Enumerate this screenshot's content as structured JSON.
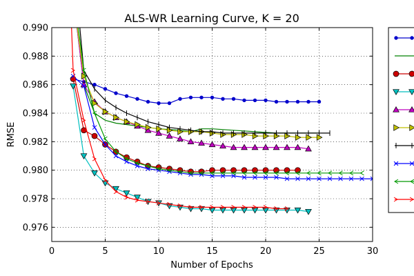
{
  "chart_data": {
    "type": "line",
    "title": "ALS-WR Learning Curve,  K = 20",
    "xlabel": "Number of Epochs",
    "ylabel": "RMSE",
    "xlim": [
      0,
      30
    ],
    "ylim": [
      0.975,
      0.99
    ],
    "xticks": [
      0,
      5,
      10,
      15,
      20,
      25,
      30
    ],
    "yticks": [
      0.976,
      0.978,
      0.98,
      0.982,
      0.984,
      0.986,
      0.988,
      0.99
    ],
    "xtick_labels": [
      "0",
      "5",
      "10",
      "15",
      "20",
      "25",
      "30"
    ],
    "ytick_labels": [
      "0.976",
      "0.978",
      "0.980",
      "0.982",
      "0.984",
      "0.986",
      "0.988",
      "0.990"
    ],
    "grid": true,
    "legend_position": "right, outside plot",
    "series": [
      {
        "color": "#0000cc",
        "marker": "dot",
        "style": "connected-markers",
        "points": [
          [
            2,
            0.9864
          ],
          [
            3,
            0.9862
          ],
          [
            4,
            0.986
          ],
          [
            5,
            0.9857
          ],
          [
            6,
            0.9854
          ],
          [
            7,
            0.9852
          ],
          [
            8,
            0.985
          ],
          [
            9,
            0.9848
          ],
          [
            10,
            0.9847
          ],
          [
            11,
            0.9847
          ],
          [
            12,
            0.985
          ],
          [
            13,
            0.9851
          ],
          [
            14,
            0.9851
          ],
          [
            15,
            0.9851
          ],
          [
            16,
            0.985
          ],
          [
            17,
            0.985
          ],
          [
            18,
            0.9849
          ],
          [
            19,
            0.9849
          ],
          [
            20,
            0.9849
          ],
          [
            21,
            0.9848
          ],
          [
            22,
            0.9848
          ],
          [
            23,
            0.9848
          ],
          [
            24,
            0.9848
          ],
          [
            25,
            0.9848
          ]
        ]
      },
      {
        "color": "#008000",
        "marker": "none",
        "style": "line",
        "points": [
          [
            2.2,
            0.991
          ],
          [
            2.6,
            0.9885
          ],
          [
            3,
            0.986
          ],
          [
            4,
            0.984
          ],
          [
            5,
            0.9835
          ],
          [
            6,
            0.9833
          ],
          [
            8,
            0.9831
          ],
          [
            10,
            0.9829
          ],
          [
            12,
            0.9828
          ],
          [
            13,
            0.9827
          ],
          [
            14,
            0.9829
          ],
          [
            15,
            0.9829
          ],
          [
            17,
            0.9828
          ],
          [
            19,
            0.9827
          ],
          [
            21,
            0.9826
          ],
          [
            23,
            0.9826
          ],
          [
            25,
            0.9826
          ]
        ]
      },
      {
        "color": "#cc0000",
        "marker": "circle",
        "style": "connected-markers",
        "points": [
          [
            2,
            0.9864
          ],
          [
            3,
            0.9828
          ],
          [
            4,
            0.9824
          ],
          [
            5,
            0.9818
          ],
          [
            6,
            0.9813
          ],
          [
            7,
            0.9809
          ],
          [
            8,
            0.9806
          ],
          [
            9,
            0.9803
          ],
          [
            10,
            0.9802
          ],
          [
            11,
            0.9801
          ],
          [
            12,
            0.98
          ],
          [
            13,
            0.9799
          ],
          [
            14,
            0.9799
          ],
          [
            15,
            0.98
          ],
          [
            16,
            0.98
          ],
          [
            17,
            0.98
          ],
          [
            18,
            0.98
          ],
          [
            19,
            0.98
          ],
          [
            20,
            0.98
          ],
          [
            21,
            0.98
          ],
          [
            22,
            0.98
          ],
          [
            23,
            0.98
          ]
        ]
      },
      {
        "color": "#00bfbf",
        "marker": "triangle-down",
        "style": "connected-markers",
        "points": [
          [
            2,
            0.9859
          ],
          [
            3,
            0.981
          ],
          [
            4,
            0.9798
          ],
          [
            5,
            0.9791
          ],
          [
            6,
            0.9787
          ],
          [
            7,
            0.9784
          ],
          [
            8,
            0.9781
          ],
          [
            9,
            0.9778
          ],
          [
            10,
            0.9777
          ],
          [
            11,
            0.9775
          ],
          [
            12,
            0.9774
          ],
          [
            13,
            0.9773
          ],
          [
            14,
            0.9773
          ],
          [
            15,
            0.9772
          ],
          [
            16,
            0.9772
          ],
          [
            17,
            0.9772
          ],
          [
            18,
            0.9772
          ],
          [
            19,
            0.9772
          ],
          [
            20,
            0.9772
          ],
          [
            21,
            0.9772
          ],
          [
            22,
            0.9772
          ],
          [
            23,
            0.9772
          ],
          [
            24,
            0.9771
          ]
        ]
      },
      {
        "color": "#bf00bf",
        "marker": "triangle-up",
        "style": "connected-markers",
        "points": [
          [
            2.2,
            0.991
          ],
          [
            3,
            0.986
          ],
          [
            4,
            0.9848
          ],
          [
            5,
            0.9841
          ],
          [
            6,
            0.9837
          ],
          [
            7,
            0.9834
          ],
          [
            8,
            0.9831
          ],
          [
            9,
            0.9828
          ],
          [
            10,
            0.9826
          ],
          [
            11,
            0.9824
          ],
          [
            12,
            0.9822
          ],
          [
            13,
            0.982
          ],
          [
            14,
            0.9819
          ],
          [
            15,
            0.9818
          ],
          [
            16,
            0.9817
          ],
          [
            17,
            0.9816
          ],
          [
            18,
            0.9816
          ],
          [
            19,
            0.9816
          ],
          [
            20,
            0.9816
          ],
          [
            21,
            0.9816
          ],
          [
            22,
            0.9816
          ],
          [
            23,
            0.9816
          ],
          [
            24,
            0.9815
          ]
        ]
      },
      {
        "color": "#bfbf00",
        "marker": "triangle-right",
        "style": "connected-markers",
        "points": [
          [
            2.2,
            0.991
          ],
          [
            3,
            0.9866
          ],
          [
            4,
            0.9847
          ],
          [
            5,
            0.9841
          ],
          [
            6,
            0.9837
          ],
          [
            7,
            0.9834
          ],
          [
            8,
            0.9832
          ],
          [
            9,
            0.983
          ],
          [
            10,
            0.9829
          ],
          [
            11,
            0.9828
          ],
          [
            12,
            0.9827
          ],
          [
            13,
            0.9827
          ],
          [
            14,
            0.9827
          ],
          [
            15,
            0.9826
          ],
          [
            16,
            0.9825
          ],
          [
            17,
            0.9825
          ],
          [
            18,
            0.9825
          ],
          [
            19,
            0.9824
          ],
          [
            20,
            0.9824
          ],
          [
            21,
            0.9824
          ],
          [
            22,
            0.9824
          ],
          [
            23,
            0.9823
          ],
          [
            24,
            0.9823
          ],
          [
            25,
            0.9823
          ]
        ]
      },
      {
        "color": "#000000",
        "marker": "tick",
        "style": "connected-markers",
        "points": [
          [
            2.5,
            0.991
          ],
          [
            3,
            0.987
          ],
          [
            4,
            0.9857
          ],
          [
            5,
            0.9849
          ],
          [
            6,
            0.9844
          ],
          [
            7,
            0.984
          ],
          [
            8,
            0.9837
          ],
          [
            9,
            0.9834
          ],
          [
            10,
            0.9832
          ],
          [
            11,
            0.983
          ],
          [
            12,
            0.9829
          ],
          [
            13,
            0.9828
          ],
          [
            14,
            0.9827
          ],
          [
            15,
            0.9827
          ],
          [
            16,
            0.9826
          ],
          [
            17,
            0.9826
          ],
          [
            18,
            0.9826
          ],
          [
            19,
            0.9826
          ],
          [
            20,
            0.9826
          ],
          [
            21,
            0.9826
          ],
          [
            22,
            0.9826
          ],
          [
            23,
            0.9826
          ],
          [
            24,
            0.9826
          ],
          [
            25,
            0.9826
          ],
          [
            26,
            0.9826
          ]
        ]
      },
      {
        "color": "#0000ff",
        "marker": "x",
        "style": "connected-markers",
        "points": [
          [
            2,
            0.9866
          ],
          [
            3,
            0.9859
          ],
          [
            4,
            0.983
          ],
          [
            5,
            0.9818
          ],
          [
            6,
            0.981
          ],
          [
            7,
            0.9806
          ],
          [
            8,
            0.9803
          ],
          [
            9,
            0.9801
          ],
          [
            10,
            0.98
          ],
          [
            11,
            0.9799
          ],
          [
            12,
            0.9798
          ],
          [
            13,
            0.9797
          ],
          [
            14,
            0.9797
          ],
          [
            15,
            0.9796
          ],
          [
            16,
            0.9796
          ],
          [
            17,
            0.9796
          ],
          [
            18,
            0.9795
          ],
          [
            19,
            0.9795
          ],
          [
            20,
            0.9795
          ],
          [
            21,
            0.9795
          ],
          [
            22,
            0.9794
          ],
          [
            23,
            0.9794
          ],
          [
            24,
            0.9794
          ],
          [
            25,
            0.9794
          ],
          [
            26,
            0.9794
          ],
          [
            27,
            0.9794
          ],
          [
            28,
            0.9794
          ],
          [
            29,
            0.9794
          ],
          [
            30,
            0.9794
          ]
        ]
      },
      {
        "color": "#009900",
        "marker": "left-arrow",
        "style": "connected-markers",
        "points": [
          [
            2.3,
            0.991
          ],
          [
            3,
            0.987
          ],
          [
            4,
            0.984
          ],
          [
            5,
            0.9822
          ],
          [
            6,
            0.9813
          ],
          [
            7,
            0.9808
          ],
          [
            8,
            0.9805
          ],
          [
            9,
            0.9803
          ],
          [
            10,
            0.9801
          ],
          [
            11,
            0.98
          ],
          [
            12,
            0.9799
          ],
          [
            13,
            0.9798
          ],
          [
            14,
            0.9798
          ],
          [
            15,
            0.9798
          ],
          [
            16,
            0.9798
          ],
          [
            17,
            0.9798
          ],
          [
            18,
            0.9798
          ],
          [
            19,
            0.9798
          ],
          [
            20,
            0.9798
          ],
          [
            21,
            0.9798
          ],
          [
            22,
            0.9798
          ],
          [
            23,
            0.9798
          ],
          [
            24,
            0.9798
          ],
          [
            25,
            0.9798
          ],
          [
            26,
            0.9798
          ],
          [
            27,
            0.9798
          ],
          [
            28,
            0.9798
          ],
          [
            29,
            0.9798
          ]
        ]
      },
      {
        "color": "#ff0000",
        "marker": "right-arrow",
        "style": "connected-markers",
        "points": [
          [
            1.8,
            0.991
          ],
          [
            2,
            0.987
          ],
          [
            3,
            0.9835
          ],
          [
            4,
            0.9808
          ],
          [
            5,
            0.9793
          ],
          [
            6,
            0.9785
          ],
          [
            7,
            0.9781
          ],
          [
            8,
            0.9779
          ],
          [
            9,
            0.9778
          ],
          [
            10,
            0.9777
          ],
          [
            11,
            0.9776
          ],
          [
            12,
            0.9775
          ],
          [
            13,
            0.9774
          ],
          [
            14,
            0.9774
          ],
          [
            15,
            0.9774
          ],
          [
            16,
            0.9774
          ],
          [
            17,
            0.9774
          ],
          [
            18,
            0.9774
          ],
          [
            19,
            0.9774
          ],
          [
            20,
            0.9774
          ],
          [
            21,
            0.9773
          ],
          [
            22,
            0.9773
          ]
        ]
      }
    ]
  }
}
